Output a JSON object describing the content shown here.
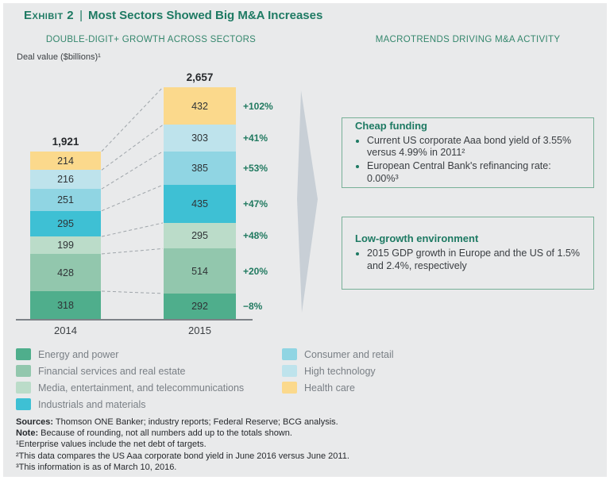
{
  "title": {
    "exhibit_label": "Exhibit 2",
    "separator": "|",
    "main": "Most Sectors Showed Big M&A Increases"
  },
  "left_panel": {
    "heading": "DOUBLE-DIGIT+ GROWTH ACROSS SECTORS",
    "axis_note": "Deal value ($billions)¹"
  },
  "right_panel": {
    "heading": "MACROTRENDS DRIVING M&A ACTIVITY",
    "boxes": [
      {
        "title": "Cheap funding",
        "bullets": [
          "Current US corporate Aaa bond yield of 3.55% versus 4.99% in 2011²",
          "European Central Bank's refinancing rate: 0.00%³"
        ]
      },
      {
        "title": "Low-growth environment",
        "bullets": [
          "2015 GDP growth in Europe and the US of 1.5% and 2.4%, respectively"
        ]
      }
    ]
  },
  "chart_data": {
    "type": "bar",
    "stacked": true,
    "title": "Deal value ($billions)",
    "categories": [
      "2014",
      "2015"
    ],
    "totals_labels": [
      "1,921",
      "2,657"
    ],
    "stacking_order": "bottom_to_top",
    "series": [
      {
        "name": "Energy and power",
        "color": "#4FAE8C",
        "values": [
          318,
          292
        ],
        "pct_change_2015": "−8%"
      },
      {
        "name": "Financial services and real estate",
        "color": "#92C7AD",
        "values": [
          428,
          514
        ],
        "pct_change_2015": "+20%"
      },
      {
        "name": "Media, entertainment, and telecommunications",
        "color": "#BBDCC9",
        "values": [
          199,
          295
        ],
        "pct_change_2015": "+48%"
      },
      {
        "name": "Industrials and materials",
        "color": "#3EC0D4",
        "values": [
          295,
          435
        ],
        "pct_change_2015": "+47%"
      },
      {
        "name": "Consumer and retail",
        "color": "#90D5E3",
        "values": [
          251,
          385
        ],
        "pct_change_2015": "+53%"
      },
      {
        "name": "High technology",
        "color": "#BEE3EC",
        "values": [
          216,
          303
        ],
        "pct_change_2015": "+41%"
      },
      {
        "name": "Health care",
        "color": "#FBD98C",
        "values": [
          214,
          432
        ],
        "pct_change_2015": "+102%"
      }
    ],
    "legend_columns": [
      [
        0,
        1,
        2,
        3
      ],
      [
        4,
        5,
        6
      ]
    ]
  },
  "footnotes": [
    {
      "label": "Sources:",
      "text": " Thomson ONE Banker; industry reports; Federal Reserve; BCG analysis."
    },
    {
      "label": "Note:",
      "text": " Because of rounding, not all numbers add up to the totals shown."
    },
    {
      "label": "",
      "text": "¹Enterprise values include the net debt of targets."
    },
    {
      "label": "",
      "text": "²This data compares the US Aaa corporate bond yield in June 2016 versus June 2011."
    },
    {
      "label": "",
      "text": "³This information is as of March 10, 2016."
    }
  ],
  "colors": {
    "title_green": "#1E7A63",
    "heading_green": "#35876D",
    "pct_green": "#217A60",
    "box_border_green": "#77B097",
    "arrow_gray": "#C8CFD6",
    "background": "#E9EAEB",
    "axis_gray": "#7D8287",
    "text_dark": "#3A3E42",
    "legend_text_gray": "#797F85"
  }
}
